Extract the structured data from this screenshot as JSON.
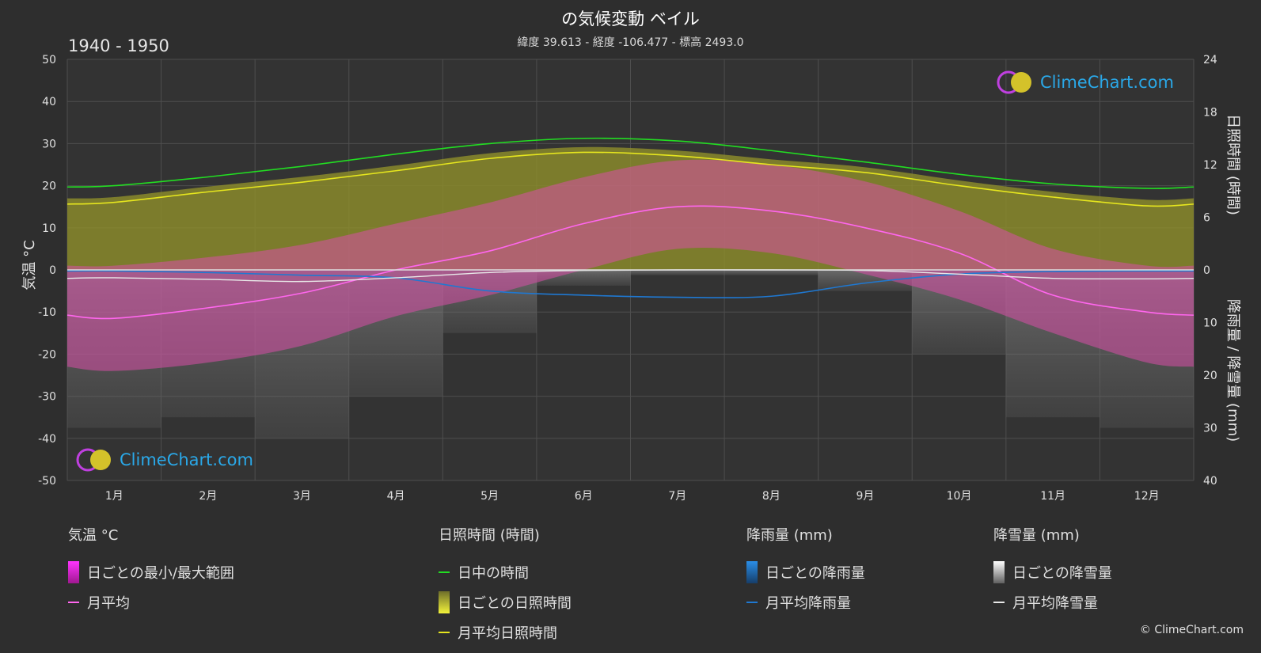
{
  "header": {
    "title": "の気候変動 ベイル",
    "subtitle": "緯度 39.613 - 経度 -106.477 - 標高 2493.0",
    "period": "1940 - 1950"
  },
  "branding": {
    "logo_text": "ClimeChart.com",
    "copyright": "© ClimeChart.com"
  },
  "colors": {
    "background": "#2e2e2e",
    "grid": "#4e4e4e",
    "daylight": "#22dd22",
    "sunshine_mean": "#e6e61e",
    "sunshine_band": "#8e8e2a",
    "temp_band": "#d84fa8",
    "temp_mean": "#ff66ee",
    "rain": "#1f78d1",
    "snow": "#e8e8e8"
  },
  "legend": {
    "temperature": {
      "heading": "気温 °C",
      "range": "日ごとの最小/最大範囲",
      "mean": "月平均"
    },
    "sunshine": {
      "heading": "日照時間 (時間)",
      "daylight": "日中の時間",
      "daily": "日ごとの日照時間",
      "mean": "月平均日照時間"
    },
    "rain": {
      "heading": "降雨量 (mm)",
      "daily": "日ごとの降雨量",
      "mean": "月平均降雨量"
    },
    "snow": {
      "heading": "降雪量 (mm)",
      "daily": "日ごとの降雪量",
      "mean": "月平均降雪量"
    }
  },
  "chart_data": {
    "type": "line",
    "categories": [
      "1月",
      "2月",
      "3月",
      "4月",
      "5月",
      "6月",
      "7月",
      "8月",
      "9月",
      "10月",
      "11月",
      "12月"
    ],
    "axes": {
      "left": {
        "label": "気温 °C",
        "range": [
          -50,
          50
        ],
        "ticks": [
          "50",
          "40",
          "30",
          "20",
          "10",
          "0",
          "-10",
          "-20",
          "-30",
          "-40",
          "-50"
        ]
      },
      "right_top": {
        "label": "日照時間 (時間)",
        "range": [
          0,
          24
        ],
        "ticks": [
          "24",
          "18",
          "12",
          "6",
          "0"
        ]
      },
      "right_bottom": {
        "label": "降雨量 / 降雪量 (mm)",
        "range": [
          0,
          40
        ],
        "ticks": [
          "10",
          "20",
          "30",
          "40"
        ]
      }
    },
    "grid": true,
    "series": [
      {
        "name": "日中の時間",
        "axis": "hours",
        "values": [
          9.6,
          10.6,
          11.8,
          13.2,
          14.4,
          15.0,
          14.7,
          13.6,
          12.3,
          10.9,
          9.8,
          9.3
        ]
      },
      {
        "name": "月平均日照時間",
        "axis": "hours",
        "values": [
          7.7,
          8.9,
          10.0,
          11.3,
          12.7,
          13.4,
          13.0,
          12.0,
          11.1,
          9.6,
          8.3,
          7.3
        ]
      },
      {
        "name": "日ごとの日照時間",
        "axis": "hours",
        "values": [
          8.3,
          9.5,
          10.6,
          11.9,
          13.3,
          14.0,
          13.6,
          12.6,
          11.7,
          10.2,
          8.9,
          8.0
        ]
      },
      {
        "name": "月平均",
        "axis": "temp",
        "values": [
          -11.5,
          -9,
          -5.5,
          0,
          4.5,
          11,
          15,
          14,
          10,
          4,
          -6,
          -10
        ]
      },
      {
        "name": "日ごとの最小/最大範囲",
        "axis": "temp",
        "max": [
          1,
          3,
          6,
          11,
          16,
          22,
          26,
          25,
          21,
          14,
          5,
          1
        ],
        "min": [
          -24,
          -22,
          -18,
          -11,
          -6,
          0,
          5,
          4,
          -1,
          -7,
          -15,
          -22
        ]
      },
      {
        "name": "月平均降雨量",
        "axis": "precip",
        "values": [
          0.2,
          0.5,
          1.0,
          1.5,
          4.0,
          4.8,
          5.2,
          5.0,
          2.5,
          0.8,
          0.3,
          0.2
        ]
      },
      {
        "name": "月平均降雪量",
        "axis": "precip",
        "values": [
          1.5,
          1.8,
          2.2,
          1.5,
          0.5,
          0.1,
          0,
          0,
          0.1,
          0.8,
          1.6,
          1.7
        ]
      },
      {
        "name": "日ごとの降雪量",
        "axis": "precip",
        "values": [
          30,
          28,
          32,
          24,
          12,
          3,
          1,
          1,
          4,
          16,
          28,
          30
        ]
      }
    ]
  }
}
